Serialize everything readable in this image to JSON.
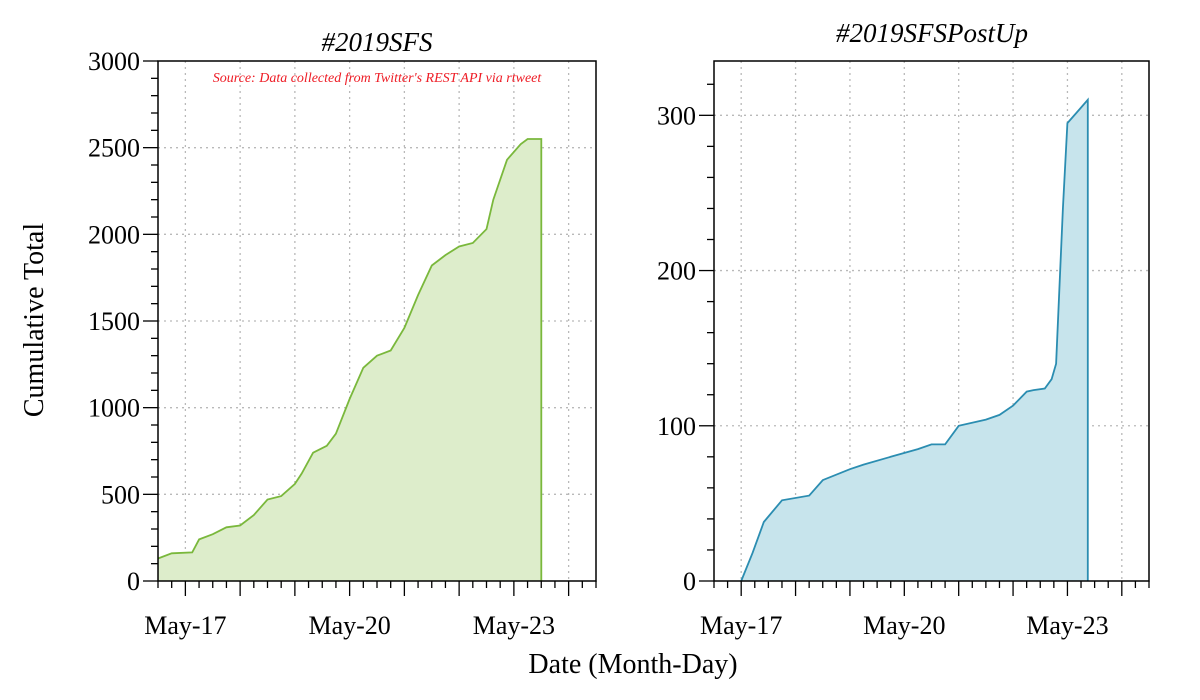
{
  "figure": {
    "xlabel": "Date (Month-Day)",
    "ylabel": "Cumulative Total",
    "source": "Source: Data collected from Twitter's REST API via rtweet"
  },
  "chart_data": [
    {
      "type": "area",
      "title": "#2019SFS",
      "x_tick_labels": [
        "May-17",
        "May-20",
        "May-23"
      ],
      "x_tick_dates": [
        "2019-05-17",
        "2019-05-20",
        "2019-05-23"
      ],
      "xlim": [
        "2019-05-16 12:00",
        "2019-05-24 12:00"
      ],
      "ylim": [
        0,
        3000
      ],
      "y_ticks": [
        0,
        500,
        1000,
        1500,
        2000,
        2500,
        3000
      ],
      "grid": true,
      "colors": {
        "line": "#7ab83c",
        "fill": "#ddedcb"
      },
      "x": [
        "2019-05-16 12:00",
        "2019-05-16 18:00",
        "2019-05-17 03:00",
        "2019-05-17 06:00",
        "2019-05-17 12:00",
        "2019-05-17 18:00",
        "2019-05-18 00:00",
        "2019-05-18 06:00",
        "2019-05-18 12:00",
        "2019-05-18 18:00",
        "2019-05-19 00:00",
        "2019-05-19 03:00",
        "2019-05-19 08:00",
        "2019-05-19 14:00",
        "2019-05-19 18:00",
        "2019-05-20 00:00",
        "2019-05-20 06:00",
        "2019-05-20 12:00",
        "2019-05-20 18:00",
        "2019-05-21 00:00",
        "2019-05-21 06:00",
        "2019-05-21 12:00",
        "2019-05-21 18:00",
        "2019-05-22 00:00",
        "2019-05-22 06:00",
        "2019-05-22 12:00",
        "2019-05-22 15:00",
        "2019-05-22 21:00",
        "2019-05-23 03:00",
        "2019-05-23 06:00",
        "2019-05-23 12:00"
      ],
      "y": [
        130,
        160,
        165,
        240,
        270,
        310,
        320,
        380,
        470,
        490,
        560,
        620,
        740,
        780,
        850,
        1050,
        1230,
        1300,
        1330,
        1460,
        1650,
        1820,
        1880,
        1930,
        1950,
        2030,
        2200,
        2430,
        2520,
        2550,
        2550
      ]
    },
    {
      "type": "area",
      "title": "#2019SFSPostUp",
      "x_tick_labels": [
        "May-17",
        "May-20",
        "May-23"
      ],
      "x_tick_dates": [
        "2019-05-17",
        "2019-05-20",
        "2019-05-23"
      ],
      "xlim": [
        "2019-05-16 12:00",
        "2019-05-24 12:00"
      ],
      "ylim": [
        0,
        335
      ],
      "y_ticks": [
        0,
        100,
        200,
        300
      ],
      "grid": true,
      "colors": {
        "line": "#2b8db1",
        "fill": "#c7e4ec"
      },
      "x": [
        "2019-05-17 00:00",
        "2019-05-17 05:00",
        "2019-05-17 10:00",
        "2019-05-17 18:00",
        "2019-05-18 06:00",
        "2019-05-18 12:00",
        "2019-05-19 00:00",
        "2019-05-19 06:00",
        "2019-05-19 18:00",
        "2019-05-20 06:00",
        "2019-05-20 12:00",
        "2019-05-20 18:00",
        "2019-05-21 00:00",
        "2019-05-21 12:00",
        "2019-05-21 18:00",
        "2019-05-22 00:00",
        "2019-05-22 06:00",
        "2019-05-22 09:00",
        "2019-05-22 14:00",
        "2019-05-22 17:00",
        "2019-05-22 19:00",
        "2019-05-22 22:00",
        "2019-05-23 00:00",
        "2019-05-23 06:00",
        "2019-05-23 09:00"
      ],
      "y": [
        0,
        18,
        38,
        52,
        55,
        65,
        72,
        75,
        80,
        85,
        88,
        88,
        100,
        104,
        107,
        113,
        122,
        123,
        124,
        130,
        140,
        240,
        295,
        305,
        310
      ]
    }
  ]
}
